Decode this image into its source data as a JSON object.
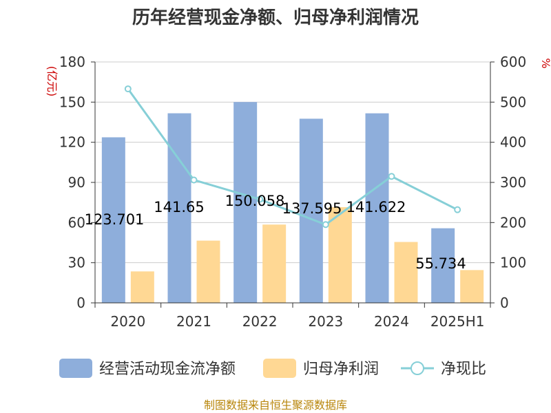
{
  "chart_data": {
    "type": "bar",
    "title": "历年经营现金净额、归母净利润情况",
    "categories": [
      "2020",
      "2021",
      "2022",
      "2023",
      "2024",
      "2025H1"
    ],
    "y_left": {
      "unit": "(亿元)",
      "ylim": [
        0,
        180
      ],
      "ticks": [
        0,
        30,
        60,
        90,
        120,
        150,
        180
      ]
    },
    "y_right": {
      "unit": "%",
      "ylim": [
        0,
        600
      ],
      "ticks": [
        0,
        100,
        200,
        300,
        400,
        500,
        600
      ]
    },
    "grid": true,
    "legend_position": "bottom",
    "series": [
      {
        "name": "经营活动现金流净额",
        "type": "bar",
        "axis": "left",
        "color": "#8eaedb",
        "values": [
          123.701,
          141.65,
          150.058,
          137.595,
          141.622,
          55.734
        ],
        "labels": [
          "123.701",
          "141.65",
          "150.058",
          "137.595",
          "141.622",
          "55.734"
        ]
      },
      {
        "name": "归母净利润",
        "type": "bar",
        "axis": "left",
        "color": "#ffd894",
        "values": [
          23.5,
          46.5,
          58.5,
          71.5,
          45.5,
          24.5
        ]
      },
      {
        "name": "净现比",
        "type": "line",
        "axis": "right",
        "color": "#86cfd7",
        "values": [
          533,
          306,
          258,
          195,
          315,
          232
        ]
      }
    ]
  },
  "source": "制图数据来自恒生聚源数据库"
}
